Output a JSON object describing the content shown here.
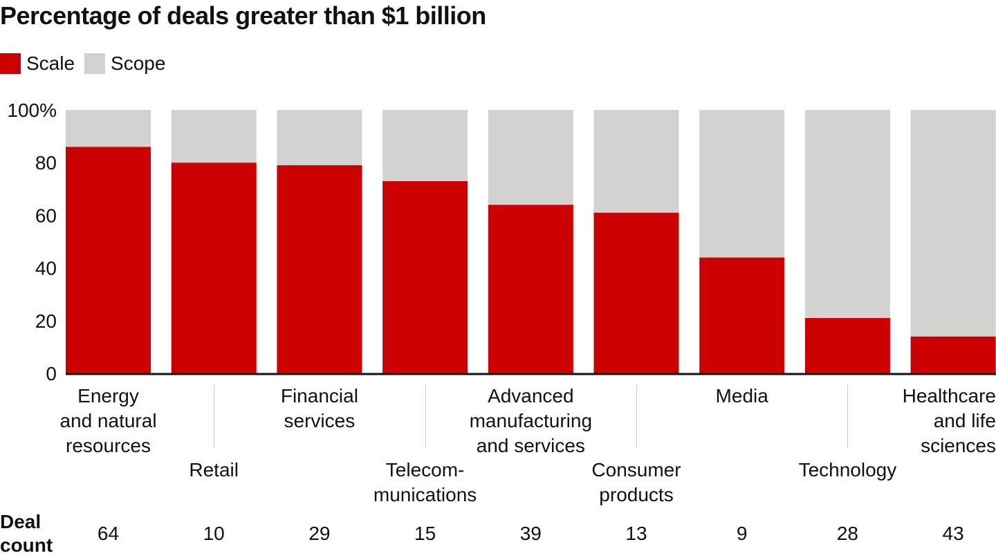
{
  "chart_data": {
    "type": "bar",
    "stacked": true,
    "title": "Percentage of deals greater than $1 billion",
    "xlabel": "",
    "ylabel": "",
    "ylim": [
      0,
      100
    ],
    "yticks": [
      "0",
      "20",
      "40",
      "60",
      "80",
      "100%"
    ],
    "ytick_values": [
      0,
      20,
      40,
      60,
      80,
      100
    ],
    "legend_position": "top-left",
    "categories": [
      "Energy\nand natural\nresources",
      "Retail",
      "Financial\nservices",
      "Telecom-\nmunications",
      "Advanced\nmanufacturing\nand services",
      "Consumer\nproducts",
      "Media",
      "Technology",
      "Healthcare\nand life\nsciences"
    ],
    "series": [
      {
        "name": "Scale",
        "color": "#cc0000",
        "values": [
          86,
          80,
          79,
          73,
          64,
          61,
          44,
          21,
          14
        ]
      },
      {
        "name": "Scope",
        "color": "#d2d2d0",
        "values": [
          14,
          20,
          21,
          27,
          36,
          39,
          56,
          79,
          86
        ]
      }
    ],
    "deal_count_label": "Deal\ncount",
    "deal_counts": [
      "64",
      "10",
      "29",
      "15",
      "39",
      "13",
      "9",
      "28",
      "43"
    ]
  }
}
